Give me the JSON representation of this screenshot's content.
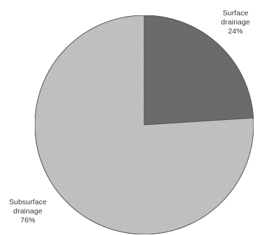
{
  "chart_data": {
    "type": "pie",
    "slices": [
      {
        "label": [
          "Surface",
          "drainage"
        ],
        "percent_label": "24%",
        "value": 24,
        "color": "#6f6f6f"
      },
      {
        "label": [
          "Subsurface",
          "drainage"
        ],
        "percent_label": "76%",
        "value": 76,
        "color": "#c7c7c7"
      }
    ],
    "start_angle_deg": 0,
    "direction": "clockwise",
    "edge_color": "#555555"
  }
}
